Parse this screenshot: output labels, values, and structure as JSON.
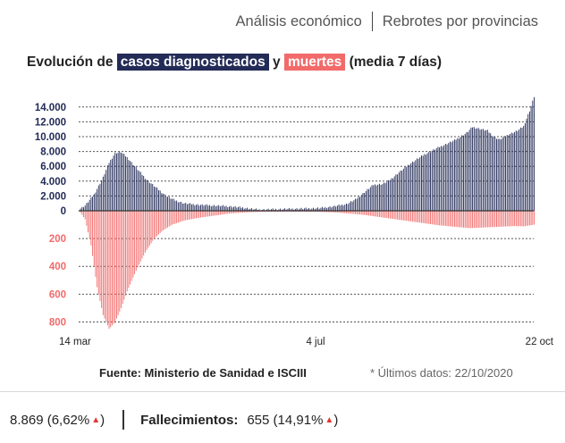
{
  "nav": {
    "link1": "Análisis económico",
    "link2": "Rebrotes por provincias"
  },
  "title": {
    "prefix": "Evolución de",
    "cases_label": "casos diagnosticados",
    "joiner": "y",
    "deaths_label": "muertes",
    "suffix": "(media 7 días)"
  },
  "source": {
    "text": "Fuente: Ministerio de Sanidad e ISCIII",
    "updated": "* Últimos datos: 22/10/2020"
  },
  "stats": {
    "cases_value": "8.869 (6,62%",
    "deaths_label": "Fallecimientos:",
    "deaths_value": "655 (14,91%",
    "up_arrow": "▲",
    "close_paren": ")"
  },
  "colors": {
    "cases": "#232b57",
    "deaths": "#f26a6a",
    "grid": "#555555"
  },
  "chart_data": {
    "type": "bar",
    "x_labels": [
      "14 mar",
      "4 jul",
      "22 oct"
    ],
    "cases_ticks": [
      "14.000",
      "12.000",
      "10.000",
      "8.000",
      "6.000",
      "4.000",
      "2.000",
      "0"
    ],
    "cases_tick_values": [
      14000,
      12000,
      10000,
      8000,
      6000,
      4000,
      2000,
      0
    ],
    "deaths_ticks": [
      "200",
      "400",
      "600",
      "800"
    ],
    "deaths_tick_values": [
      200,
      400,
      600,
      800
    ],
    "cases_range": [
      0,
      15000
    ],
    "deaths_range": [
      0,
      850
    ],
    "series": [
      {
        "name": "casos diagnosticados",
        "points": [
          [
            0,
            200
          ],
          [
            4,
            700
          ],
          [
            10,
            2200
          ],
          [
            16,
            4500
          ],
          [
            20,
            6500
          ],
          [
            24,
            7800
          ],
          [
            28,
            7900
          ],
          [
            32,
            7200
          ],
          [
            38,
            5800
          ],
          [
            45,
            4200
          ],
          [
            52,
            3000
          ],
          [
            58,
            2000
          ],
          [
            64,
            1400
          ],
          [
            70,
            1000
          ],
          [
            80,
            800
          ],
          [
            90,
            700
          ],
          [
            100,
            600
          ],
          [
            110,
            400
          ],
          [
            115,
            250
          ],
          [
            120,
            150
          ],
          [
            130,
            200
          ],
          [
            140,
            250
          ],
          [
            150,
            300
          ],
          [
            160,
            350
          ],
          [
            170,
            600
          ],
          [
            178,
            900
          ],
          [
            184,
            1500
          ],
          [
            190,
            2500
          ],
          [
            196,
            3500
          ],
          [
            202,
            3600
          ],
          [
            206,
            4000
          ],
          [
            212,
            5000
          ],
          [
            220,
            6300
          ],
          [
            230,
            7600
          ],
          [
            240,
            8600
          ],
          [
            250,
            9500
          ],
          [
            258,
            10500
          ],
          [
            262,
            11300
          ],
          [
            268,
            11000
          ],
          [
            272,
            10800
          ],
          [
            276,
            10000
          ],
          [
            280,
            9600
          ],
          [
            286,
            10300
          ],
          [
            292,
            10800
          ],
          [
            296,
            11400
          ],
          [
            300,
            13500
          ],
          [
            303,
            15400
          ]
        ]
      },
      {
        "name": "muertes",
        "points": [
          [
            0,
            0
          ],
          [
            4,
            60
          ],
          [
            8,
            250
          ],
          [
            12,
            550
          ],
          [
            16,
            750
          ],
          [
            20,
            850
          ],
          [
            24,
            800
          ],
          [
            28,
            700
          ],
          [
            32,
            580
          ],
          [
            38,
            430
          ],
          [
            44,
            300
          ],
          [
            50,
            200
          ],
          [
            56,
            140
          ],
          [
            62,
            100
          ],
          [
            70,
            70
          ],
          [
            80,
            50
          ],
          [
            90,
            35
          ],
          [
            100,
            20
          ],
          [
            110,
            12
          ],
          [
            120,
            8
          ],
          [
            140,
            6
          ],
          [
            160,
            8
          ],
          [
            170,
            12
          ],
          [
            180,
            20
          ],
          [
            190,
            30
          ],
          [
            200,
            45
          ],
          [
            210,
            60
          ],
          [
            220,
            75
          ],
          [
            230,
            90
          ],
          [
            240,
            105
          ],
          [
            250,
            115
          ],
          [
            260,
            125
          ],
          [
            270,
            120
          ],
          [
            280,
            115
          ],
          [
            290,
            110
          ],
          [
            296,
            112
          ],
          [
            303,
            100
          ]
        ]
      }
    ]
  }
}
